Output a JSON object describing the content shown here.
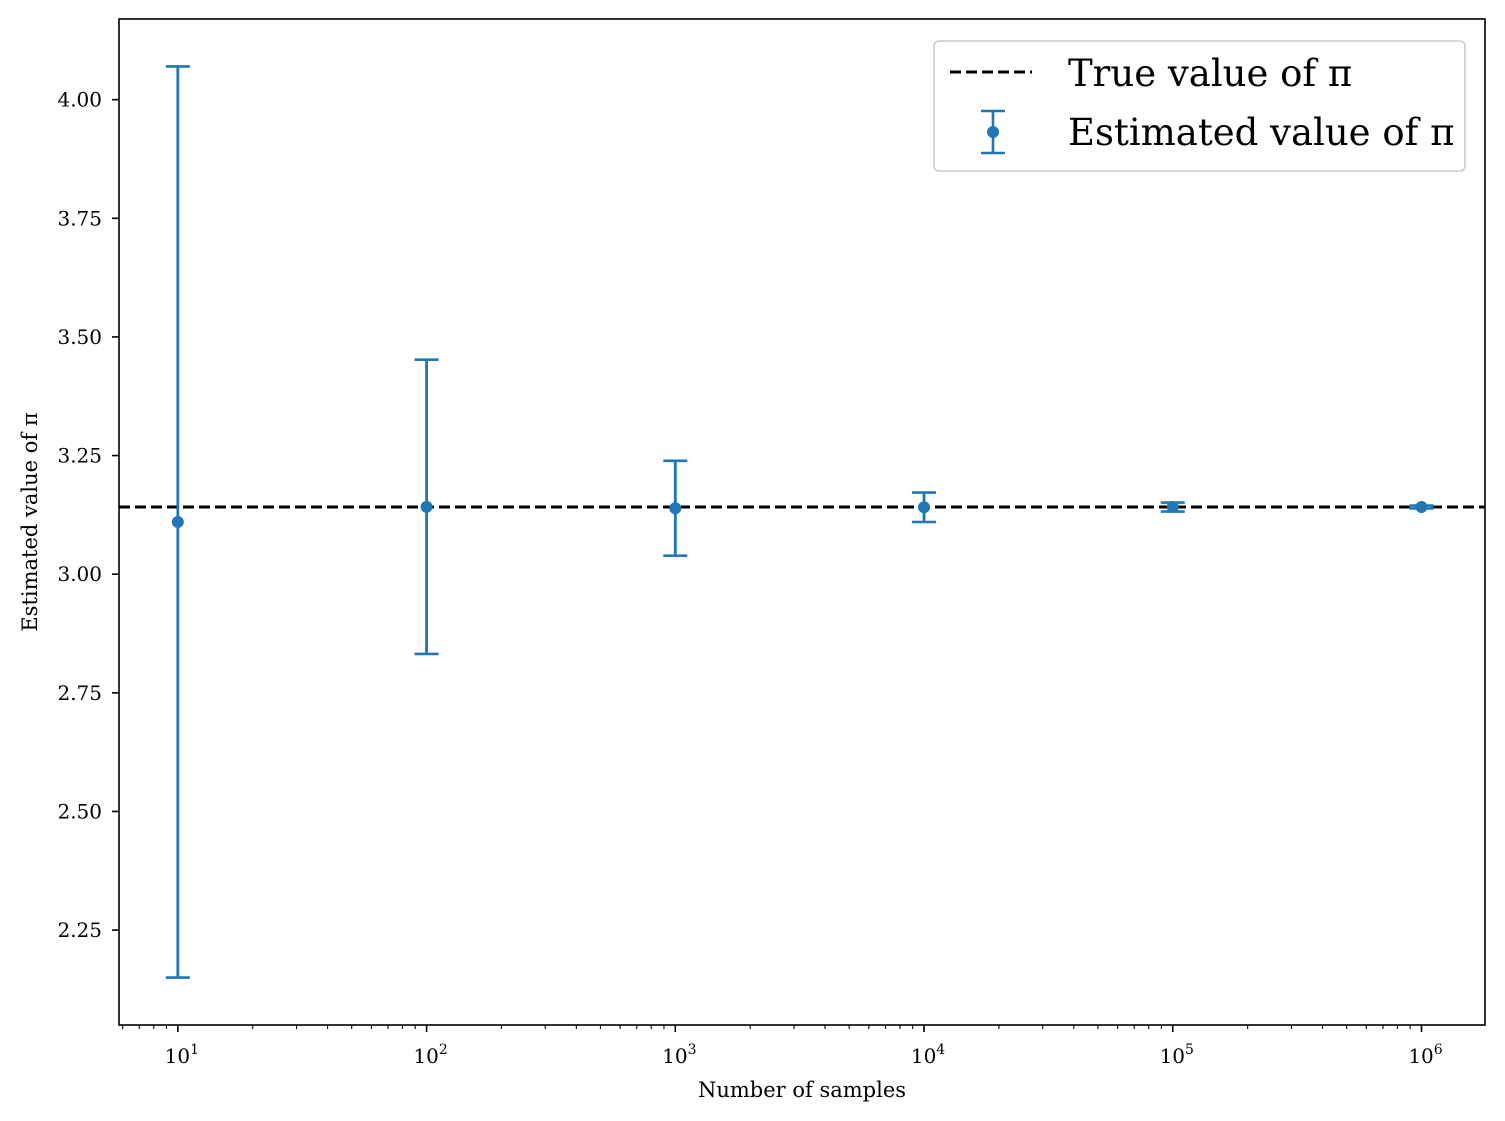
{
  "chart_data": {
    "type": "errorbar",
    "title": "",
    "xlabel": "Number of samples",
    "ylabel": "Estimated value of π",
    "xscale": "log",
    "xlim": [
      5.8,
      1800000
    ],
    "ylim": [
      2.05,
      4.17
    ],
    "yticks": [
      2.25,
      2.5,
      2.75,
      3.0,
      3.25,
      3.5,
      3.75,
      4.0
    ],
    "ytick_labels": [
      "2.25",
      "2.50",
      "2.75",
      "3.00",
      "3.25",
      "3.50",
      "3.75",
      "4.00"
    ],
    "xticks": [
      10,
      100,
      1000,
      10000,
      100000,
      1000000
    ],
    "xtick_labels": [
      {
        "base": "10",
        "exp": "1"
      },
      {
        "base": "10",
        "exp": "2"
      },
      {
        "base": "10",
        "exp": "3"
      },
      {
        "base": "10",
        "exp": "4"
      },
      {
        "base": "10",
        "exp": "5"
      },
      {
        "base": "10",
        "exp": "6"
      }
    ],
    "series": [
      {
        "name": "Estimated value of π",
        "color": "#1f77b4",
        "x": [
          10,
          100,
          1000,
          10000,
          100000,
          1000000
        ],
        "y": [
          3.11,
          3.142,
          3.139,
          3.141,
          3.1415,
          3.1416
        ],
        "yerr": [
          0.96,
          0.31,
          0.1,
          0.031,
          0.0095,
          0.003
        ]
      }
    ],
    "reference_line": {
      "name": "True value of π",
      "value": 3.14159,
      "color": "#000000",
      "style": "dashed"
    },
    "legend": {
      "placement": "top-right",
      "entries": [
        {
          "label": "True value of π",
          "kind": "dashed-line"
        },
        {
          "label": "Estimated value of π",
          "kind": "errorbar-marker"
        }
      ]
    }
  }
}
